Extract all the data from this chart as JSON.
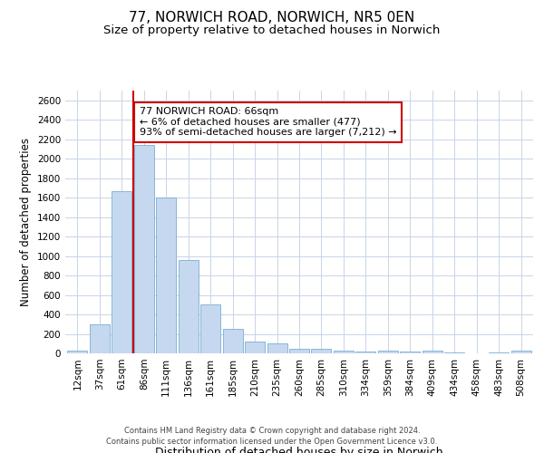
{
  "title": "77, NORWICH ROAD, NORWICH, NR5 0EN",
  "subtitle": "Size of property relative to detached houses in Norwich",
  "xlabel": "Distribution of detached houses by size in Norwich",
  "ylabel": "Number of detached properties",
  "categories": [
    "12sqm",
    "37sqm",
    "61sqm",
    "86sqm",
    "111sqm",
    "136sqm",
    "161sqm",
    "185sqm",
    "210sqm",
    "235sqm",
    "260sqm",
    "285sqm",
    "310sqm",
    "334sqm",
    "359sqm",
    "384sqm",
    "409sqm",
    "434sqm",
    "458sqm",
    "483sqm",
    "508sqm"
  ],
  "values": [
    25,
    300,
    1670,
    2140,
    1600,
    960,
    500,
    250,
    120,
    100,
    50,
    50,
    30,
    20,
    30,
    20,
    25,
    5,
    0,
    5,
    25
  ],
  "bar_color": "#c5d8ef",
  "bar_edge_color": "#7aadd4",
  "ylim": [
    0,
    2700
  ],
  "yticks": [
    0,
    200,
    400,
    600,
    800,
    1000,
    1200,
    1400,
    1600,
    1800,
    2000,
    2200,
    2400,
    2600
  ],
  "vline_color": "#cc0000",
  "vline_x": 2.5,
  "annotation_text": "77 NORWICH ROAD: 66sqm\n← 6% of detached houses are smaller (477)\n93% of semi-detached houses are larger (7,212) →",
  "annotation_box_color": "#ffffff",
  "annotation_box_edge": "#cc0000",
  "footer_line1": "Contains HM Land Registry data © Crown copyright and database right 2024.",
  "footer_line2": "Contains public sector information licensed under the Open Government Licence v3.0.",
  "background_color": "#ffffff",
  "grid_color": "#c8d4e8",
  "title_fontsize": 11,
  "subtitle_fontsize": 9.5,
  "tick_fontsize": 7.5,
  "ylabel_fontsize": 8.5,
  "xlabel_fontsize": 9,
  "footer_fontsize": 6,
  "annotation_fontsize": 8
}
